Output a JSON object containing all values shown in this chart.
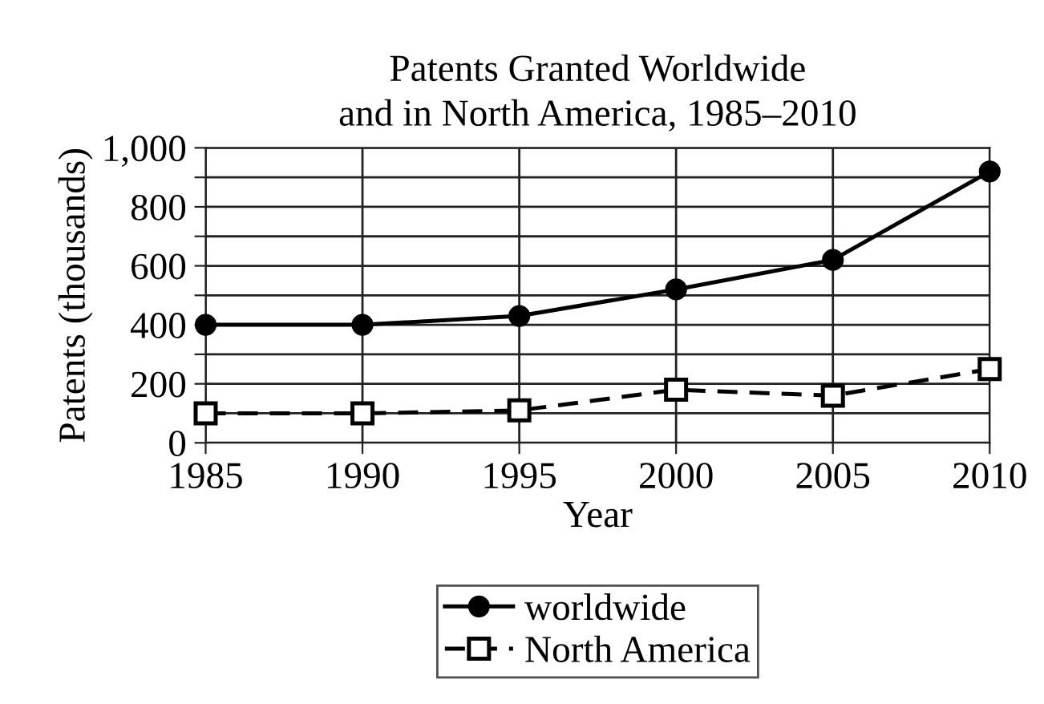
{
  "chart_data": {
    "type": "line",
    "title": "Patents Granted Worldwide\nand in North America, 1985–2010",
    "xlabel": "Year",
    "ylabel": "Patents (thousands)",
    "x": [
      1985,
      1990,
      1995,
      2000,
      2005,
      2010
    ],
    "series": [
      {
        "name": "worldwide",
        "color": "#000000",
        "marker": "circle",
        "line_style": "solid",
        "values": [
          400,
          400,
          430,
          520,
          620,
          920
        ]
      },
      {
        "name": "North America",
        "color": "#000000",
        "marker": "square",
        "line_style": "dashed",
        "values": [
          100,
          100,
          110,
          180,
          160,
          250
        ]
      }
    ],
    "xlim": [
      1985,
      2010
    ],
    "xticks": [
      1985,
      1990,
      1995,
      2000,
      2005,
      2010
    ],
    "ylim": [
      0,
      1000
    ],
    "yticks": [
      0,
      {
        "value": 100,
        "label": null
      },
      200,
      {
        "value": 300,
        "label": null
      },
      400,
      {
        "value": 500,
        "label": null
      },
      600,
      {
        "value": 700,
        "label": null
      },
      800,
      {
        "value": 900,
        "label": null
      },
      {
        "value": 1000,
        "label": "1,000"
      }
    ],
    "grid": true,
    "legend": "bottom"
  }
}
